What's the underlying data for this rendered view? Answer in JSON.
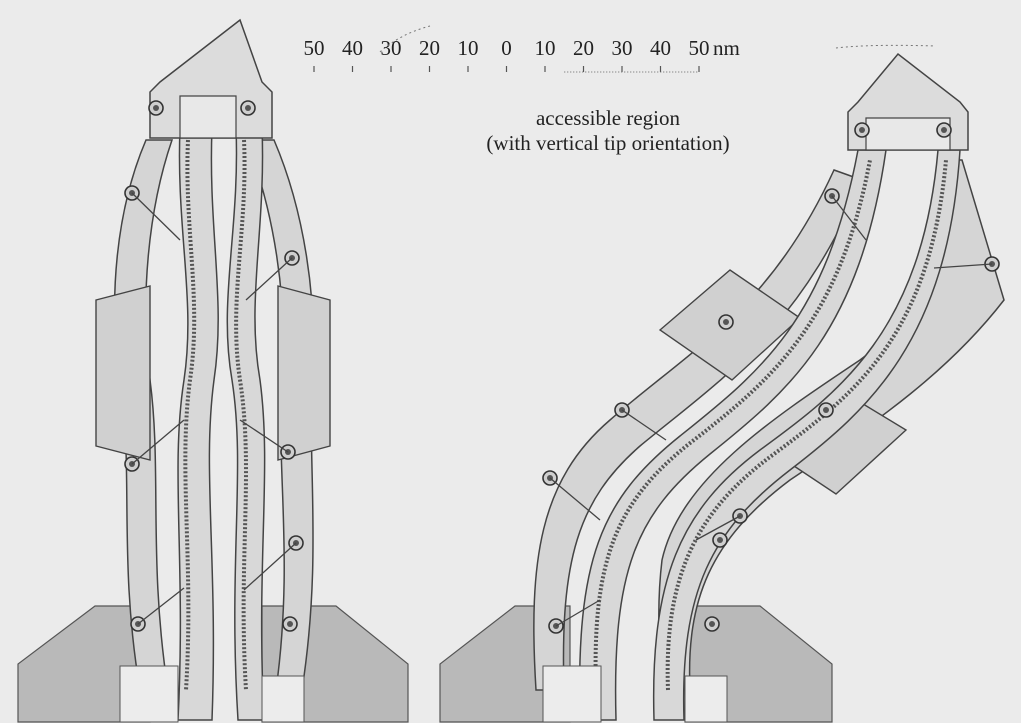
{
  "scale": {
    "tick_labels": [
      "50",
      "40",
      "30",
      "20",
      "10",
      "0",
      "10",
      "20",
      "30",
      "40",
      "50"
    ],
    "unit": "nm"
  },
  "annotation": {
    "line1": "accessible region",
    "line2": "(with vertical tip orientation)"
  },
  "colors": {
    "background": "#ebebeb",
    "structure_fill": "#d5d5d5",
    "base_fill": "#b9b9b9",
    "outline": "#444444",
    "dark_joint": "#3a3a3a"
  }
}
